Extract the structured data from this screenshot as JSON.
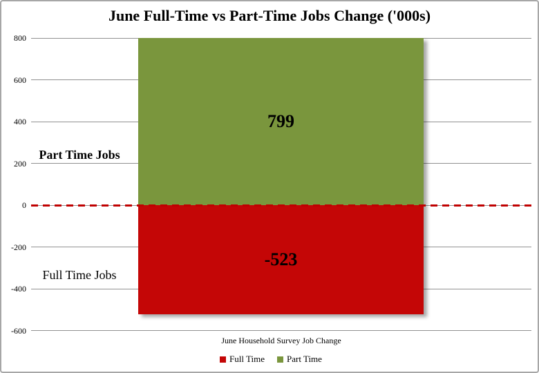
{
  "page": {
    "background_color": "#ffffff",
    "border_color": "#a6a6a6"
  },
  "chart": {
    "title": "June Full-Time vs Part-Time Jobs Change ('000s)",
    "category_label": "June Household Survey Job Change",
    "value_labels": {
      "part_time": "799",
      "full_time": "-523"
    },
    "side_labels": {
      "part_time": "Part Time Jobs",
      "full_time": "Full Time Jobs"
    },
    "legend": [
      {
        "label": "Full Time",
        "color": "#c40606"
      },
      {
        "label": "Part Time",
        "color": "#7a963d"
      }
    ],
    "colors": {
      "part_time_bar": "#7a963d",
      "full_time_bar": "#c40606",
      "zero_line": "#c00000",
      "gridline": "#909090",
      "text": "#000000"
    }
  },
  "chart_data": {
    "type": "bar",
    "title": "June Full-Time vs Part-Time Jobs Change ('000s)",
    "categories": [
      "June Household Survey Job Change"
    ],
    "series": [
      {
        "name": "Full Time",
        "values": [
          -523
        ],
        "color": "#c40606"
      },
      {
        "name": "Part Time",
        "values": [
          799
        ],
        "color": "#7a963d"
      }
    ],
    "xlabel": "June Household Survey Job Change",
    "ylabel": "",
    "ylim": [
      -600,
      800
    ],
    "yticks": [
      800,
      600,
      400,
      200,
      0,
      -200,
      -400,
      -600
    ],
    "grid": true,
    "legend_position": "bottom",
    "zero_line": {
      "style": "dashed",
      "color": "#c00000"
    },
    "annotations": [
      {
        "text": "Part Time Jobs",
        "target": "positive-bar",
        "bold": true
      },
      {
        "text": "Full Time Jobs",
        "target": "negative-bar",
        "bold": false
      },
      {
        "text": "799",
        "role": "data-label"
      },
      {
        "text": "-523",
        "role": "data-label"
      }
    ]
  }
}
